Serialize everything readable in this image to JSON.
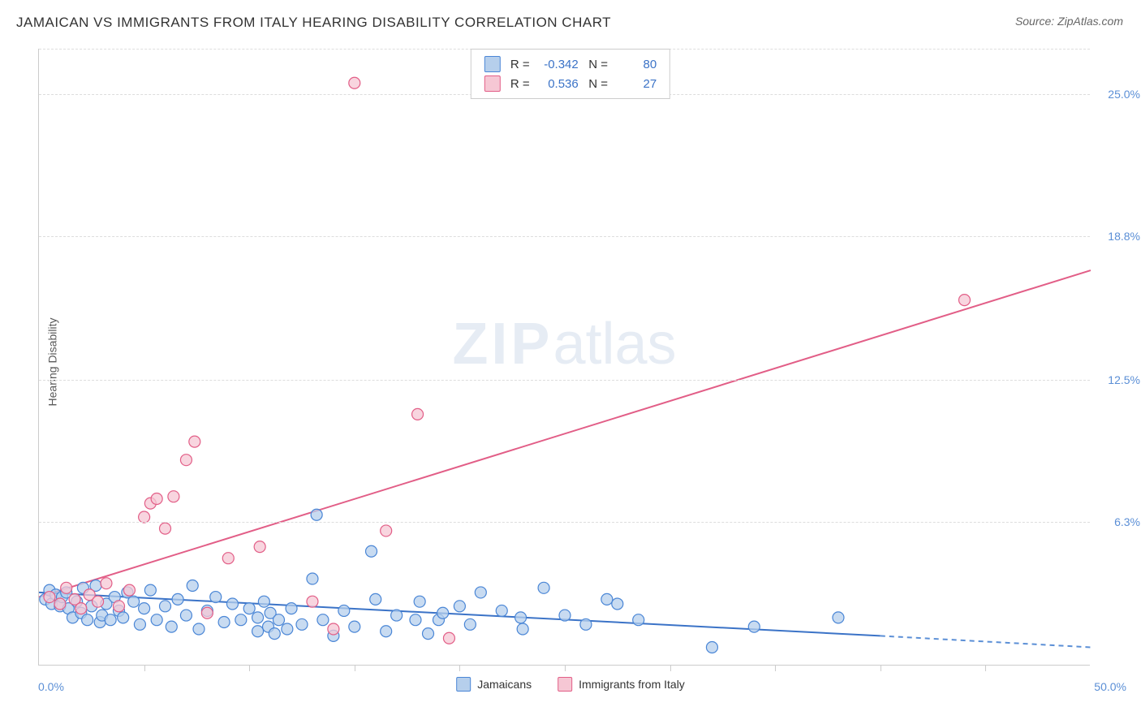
{
  "title": "JAMAICAN VS IMMIGRANTS FROM ITALY HEARING DISABILITY CORRELATION CHART",
  "source_label": "Source: ",
  "source_name": "ZipAtlas.com",
  "y_axis_label": "Hearing Disability",
  "watermark_zip": "ZIP",
  "watermark_atlas": "atlas",
  "chart": {
    "type": "scatter",
    "xlim": [
      0,
      50
    ],
    "ylim": [
      0,
      27
    ],
    "x_min_label": "0.0%",
    "x_max_label": "50.0%",
    "y_ticks": [
      6.3,
      12.5,
      18.8,
      25.0
    ],
    "y_tick_labels": [
      "6.3%",
      "12.5%",
      "18.8%",
      "25.0%"
    ],
    "x_tick_positions": [
      5,
      10,
      15,
      20,
      25,
      30,
      35,
      40,
      45
    ],
    "background_color": "#ffffff",
    "grid_color": "#dddddd",
    "axis_color": "#cccccc",
    "marker_radius": 7,
    "marker_stroke_width": 1.2,
    "trend_line_width": 2,
    "series": [
      {
        "id": "jamaicans",
        "label": "Jamaicans",
        "fill_color": "#b6cfec",
        "stroke_color": "#4a86d6",
        "trend_color": "#3b73c7",
        "trend_dash_color": "#5b8fd6",
        "R": "-0.342",
        "N": "80",
        "trend_start": [
          0,
          3.2
        ],
        "trend_solid_end": [
          40,
          1.3
        ],
        "trend_dash_end": [
          50,
          0.8
        ],
        "points": [
          [
            0.3,
            2.9
          ],
          [
            0.5,
            3.3
          ],
          [
            0.6,
            2.7
          ],
          [
            0.8,
            3.1
          ],
          [
            1.0,
            2.6
          ],
          [
            1.1,
            3.0
          ],
          [
            1.3,
            3.2
          ],
          [
            1.4,
            2.5
          ],
          [
            1.6,
            2.1
          ],
          [
            1.8,
            2.8
          ],
          [
            2.0,
            2.3
          ],
          [
            2.1,
            3.4
          ],
          [
            2.3,
            2.0
          ],
          [
            2.5,
            2.6
          ],
          [
            2.7,
            3.5
          ],
          [
            2.9,
            1.9
          ],
          [
            3.0,
            2.2
          ],
          [
            3.2,
            2.7
          ],
          [
            3.4,
            2.0
          ],
          [
            3.6,
            3.0
          ],
          [
            3.8,
            2.4
          ],
          [
            4.0,
            2.1
          ],
          [
            4.2,
            3.2
          ],
          [
            4.5,
            2.8
          ],
          [
            4.8,
            1.8
          ],
          [
            5.0,
            2.5
          ],
          [
            5.3,
            3.3
          ],
          [
            5.6,
            2.0
          ],
          [
            6.0,
            2.6
          ],
          [
            6.3,
            1.7
          ],
          [
            6.6,
            2.9
          ],
          [
            7.0,
            2.2
          ],
          [
            7.3,
            3.5
          ],
          [
            7.6,
            1.6
          ],
          [
            8.0,
            2.4
          ],
          [
            8.4,
            3.0
          ],
          [
            8.8,
            1.9
          ],
          [
            9.2,
            2.7
          ],
          [
            9.6,
            2.0
          ],
          [
            10.0,
            2.5
          ],
          [
            10.4,
            1.5
          ],
          [
            10.4,
            2.1
          ],
          [
            10.7,
            2.8
          ],
          [
            10.9,
            1.7
          ],
          [
            11.0,
            2.3
          ],
          [
            11.2,
            1.4
          ],
          [
            11.4,
            2.0
          ],
          [
            11.8,
            1.6
          ],
          [
            12.0,
            2.5
          ],
          [
            12.5,
            1.8
          ],
          [
            13.0,
            3.8
          ],
          [
            13.2,
            6.6
          ],
          [
            13.5,
            2.0
          ],
          [
            14.0,
            1.3
          ],
          [
            14.5,
            2.4
          ],
          [
            15.0,
            1.7
          ],
          [
            15.8,
            5.0
          ],
          [
            16.0,
            2.9
          ],
          [
            16.5,
            1.5
          ],
          [
            17.0,
            2.2
          ],
          [
            17.9,
            2.0
          ],
          [
            18.1,
            2.8
          ],
          [
            18.5,
            1.4
          ],
          [
            19.0,
            2.0
          ],
          [
            19.2,
            2.3
          ],
          [
            20.0,
            2.6
          ],
          [
            20.5,
            1.8
          ],
          [
            21.0,
            3.2
          ],
          [
            22.0,
            2.4
          ],
          [
            22.9,
            2.1
          ],
          [
            23.0,
            1.6
          ],
          [
            24.0,
            3.4
          ],
          [
            25.0,
            2.2
          ],
          [
            26.0,
            1.8
          ],
          [
            27.0,
            2.9
          ],
          [
            27.5,
            2.7
          ],
          [
            28.5,
            2.0
          ],
          [
            32.0,
            0.8
          ],
          [
            34.0,
            1.7
          ],
          [
            38.0,
            2.1
          ]
        ]
      },
      {
        "id": "italy",
        "label": "Immigrants from Italy",
        "fill_color": "#f6c7d4",
        "stroke_color": "#e25e87",
        "trend_color": "#e25e87",
        "R": "0.536",
        "N": "27",
        "trend_start": [
          0,
          3.0
        ],
        "trend_solid_end": [
          50,
          17.3
        ],
        "points": [
          [
            0.5,
            3.0
          ],
          [
            1.0,
            2.7
          ],
          [
            1.3,
            3.4
          ],
          [
            1.7,
            2.9
          ],
          [
            2.0,
            2.5
          ],
          [
            2.4,
            3.1
          ],
          [
            2.8,
            2.8
          ],
          [
            3.2,
            3.6
          ],
          [
            3.8,
            2.6
          ],
          [
            4.3,
            3.3
          ],
          [
            5.0,
            6.5
          ],
          [
            5.3,
            7.1
          ],
          [
            5.6,
            7.3
          ],
          [
            6.0,
            6.0
          ],
          [
            6.4,
            7.4
          ],
          [
            7.0,
            9.0
          ],
          [
            7.4,
            9.8
          ],
          [
            8.0,
            2.3
          ],
          [
            9.0,
            4.7
          ],
          [
            10.5,
            5.2
          ],
          [
            13.0,
            2.8
          ],
          [
            14.0,
            1.6
          ],
          [
            15.0,
            25.5
          ],
          [
            16.5,
            5.9
          ],
          [
            18.0,
            11.0
          ],
          [
            19.5,
            1.2
          ],
          [
            44.0,
            16.0
          ]
        ]
      }
    ]
  },
  "stats_box": {
    "R_label": "R =",
    "N_label": "N ="
  },
  "x_legend_items": [
    "jamaicans",
    "italy"
  ]
}
